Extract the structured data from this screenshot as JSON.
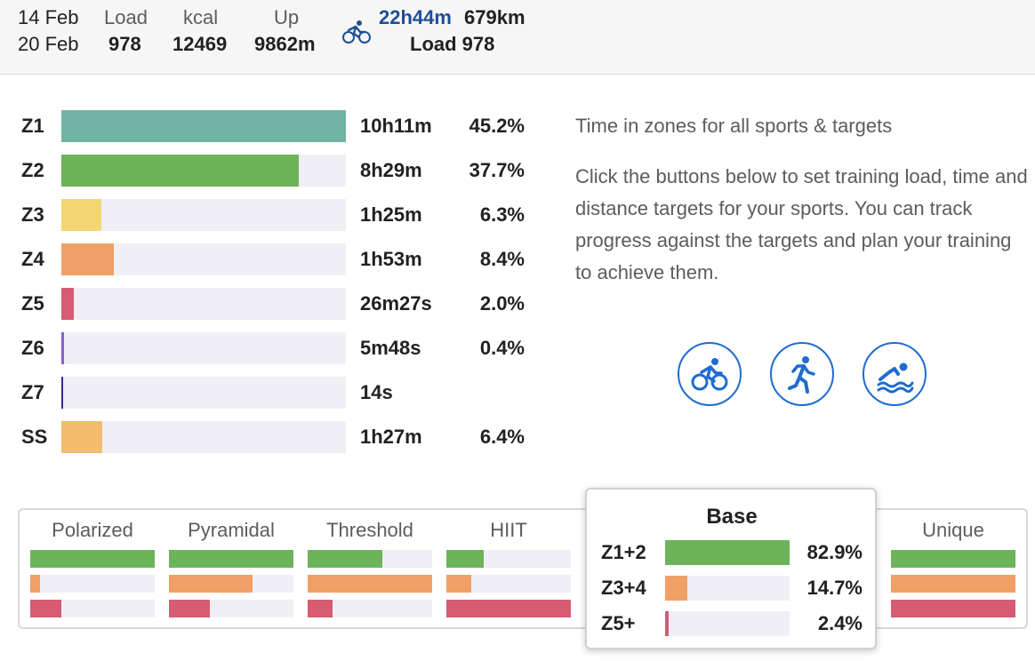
{
  "colors": {
    "z1": "#72b3a4",
    "z2": "#6cb35a",
    "z3": "#f4d775",
    "z4": "#f0a066",
    "z5": "#d75b73",
    "z6": "#8a60d0",
    "z7": "#3d2a85",
    "ss": "#f2bd6e",
    "track": "#f0eff6",
    "accent": "#1f6bd1",
    "header_blue": "#1f4e96"
  },
  "header": {
    "date_start": "14 Feb",
    "date_end": "20 Feb",
    "load_label": "Load",
    "load_value": "978",
    "kcal_label": "kcal",
    "kcal_value": "12469",
    "up_label": "Up",
    "up_value": "9862m",
    "sport_icon": "bike-icon",
    "ride_time": "22h44m",
    "ride_distance": "679km",
    "ride_load": "Load 978"
  },
  "zones": [
    {
      "label": "Z1",
      "time": "10h11m",
      "pct": "45.2%",
      "fraction": 1.0
    },
    {
      "label": "Z2",
      "time": "8h29m",
      "pct": "37.7%",
      "fraction": 0.834
    },
    {
      "label": "Z3",
      "time": "1h25m",
      "pct": "6.3%",
      "fraction": 0.141
    },
    {
      "label": "Z4",
      "time": "1h53m",
      "pct": "8.4%",
      "fraction": 0.184
    },
    {
      "label": "Z5",
      "time": "26m27s",
      "pct": "2.0%",
      "fraction": 0.044
    },
    {
      "label": "Z6",
      "time": "5m48s",
      "pct": "0.4%",
      "fraction": 0.01
    },
    {
      "label": "Z7",
      "time": "14s",
      "pct": "",
      "fraction": 0.004
    },
    {
      "label": "SS",
      "time": "1h27m",
      "pct": "6.4%",
      "fraction": 0.144
    }
  ],
  "info": {
    "title": "Time in zones for all sports & targets",
    "body": "Click the buttons below to set training load, time and distance targets for your sports. You can track progress against the targets and plan your training to achieve them."
  },
  "sport_buttons": [
    {
      "name": "ride-target-button",
      "icon": "bike-icon"
    },
    {
      "name": "run-target-button",
      "icon": "run-icon"
    },
    {
      "name": "swim-target-button",
      "icon": "swim-icon"
    }
  ],
  "distributions": [
    {
      "name": "Polarized",
      "bars": [
        1.0,
        0.08,
        0.25
      ]
    },
    {
      "name": "Pyramidal",
      "bars": [
        1.0,
        0.67,
        0.33
      ]
    },
    {
      "name": "Threshold",
      "bars": [
        0.6,
        1.0,
        0.2
      ]
    },
    {
      "name": "HIIT",
      "bars": [
        0.3,
        0.2,
        1.0
      ]
    },
    {
      "name": "Unique",
      "bars": [
        1.0,
        1.0,
        1.0
      ]
    }
  ],
  "popup": {
    "title": "Base",
    "rows": [
      {
        "label": "Z1+2",
        "pct": "82.9%",
        "fraction": 1.0
      },
      {
        "label": "Z3+4",
        "pct": "14.7%",
        "fraction": 0.177
      },
      {
        "label": "Z5+",
        "pct": "2.4%",
        "fraction": 0.029
      }
    ]
  }
}
